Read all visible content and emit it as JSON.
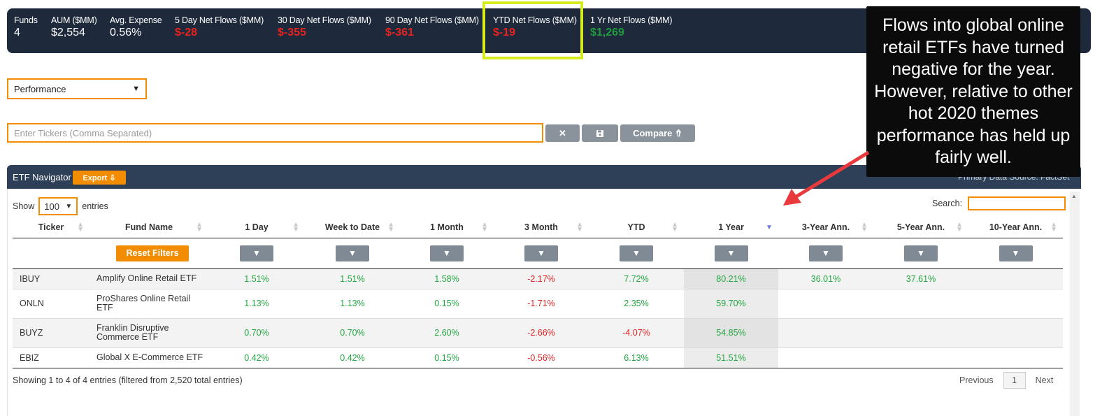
{
  "stats": {
    "funds": {
      "label": "Funds",
      "value": "4"
    },
    "aum": {
      "label": "AUM ($MM)",
      "value": "$2,554"
    },
    "expense": {
      "label": "Avg. Expense",
      "value": "0.56%"
    },
    "flows_5d": {
      "label": "5 Day Net Flows ($MM)",
      "value": "$-28"
    },
    "flows_30d": {
      "label": "30 Day Net Flows ($MM)",
      "value": "$-355"
    },
    "flows_90d": {
      "label": "90 Day Net Flows ($MM)",
      "value": "$-361"
    },
    "flows_ytd": {
      "label": "YTD Net Flows ($MM)",
      "value": "$-19"
    },
    "flows_1yr": {
      "label": "1 Yr Net Flows ($MM)",
      "value": "$1,269"
    }
  },
  "callout": {
    "text": "Flows into global online retail ETFs have turned negative for the year. However, relative to other hot 2020 themes performance has held up fairly well."
  },
  "view_select": {
    "value": "Performance"
  },
  "tickers": {
    "placeholder": "Enter Tickers (Comma Separated)",
    "clear": "✕",
    "save": "💾",
    "compare": "Compare ⇮"
  },
  "navigator": {
    "title": "ETF Navigator",
    "export": "Export ⇩",
    "source": "Primary Data Source: FactSet"
  },
  "length": {
    "show": "Show",
    "value": "100",
    "entries": "entries"
  },
  "search": {
    "label": "Search:"
  },
  "table": {
    "columns": [
      "Ticker",
      "Fund Name",
      "1 Day",
      "Week to Date",
      "1 Month",
      "3 Month",
      "YTD",
      "1 Year",
      "3-Year Ann.",
      "5-Year Ann.",
      "10-Year Ann."
    ],
    "reset": "Reset Filters",
    "filter_icon": "▼",
    "rows": [
      {
        "ticker": "IBUY",
        "name": "Amplify Online Retail ETF",
        "d1": "1.51%",
        "wtd": "1.51%",
        "m1": "1.58%",
        "m3": "-2.17%",
        "ytd": "7.72%",
        "y1": "80.21%",
        "y3": "36.01%",
        "y5": "37.61%",
        "y10": ""
      },
      {
        "ticker": "ONLN",
        "name": "ProShares Online Retail ETF",
        "d1": "1.13%",
        "wtd": "1.13%",
        "m1": "0.15%",
        "m3": "-1.71%",
        "ytd": "2.35%",
        "y1": "59.70%",
        "y3": "",
        "y5": "",
        "y10": ""
      },
      {
        "ticker": "BUYZ",
        "name": "Franklin Disruptive Commerce ETF",
        "d1": "0.70%",
        "wtd": "0.70%",
        "m1": "2.60%",
        "m3": "-2.66%",
        "ytd": "-4.07%",
        "y1": "54.85%",
        "y3": "",
        "y5": "",
        "y10": ""
      },
      {
        "ticker": "EBIZ",
        "name": "Global X E-Commerce ETF",
        "d1": "0.42%",
        "wtd": "0.42%",
        "m1": "0.15%",
        "m3": "-0.56%",
        "ytd": "6.13%",
        "y1": "51.51%",
        "y3": "",
        "y5": "",
        "y10": ""
      }
    ]
  },
  "footer": {
    "info": "Showing 1 to 4 of 4 entries (filtered from 2,520 total entries)",
    "previous": "Previous",
    "page": "1",
    "next": "Next"
  },
  "colors": {
    "accent": "#f28c00",
    "positive": "#23a640",
    "negative": "#e02424",
    "highlight": "#d7ec1c",
    "header": "#1e2a3b"
  }
}
